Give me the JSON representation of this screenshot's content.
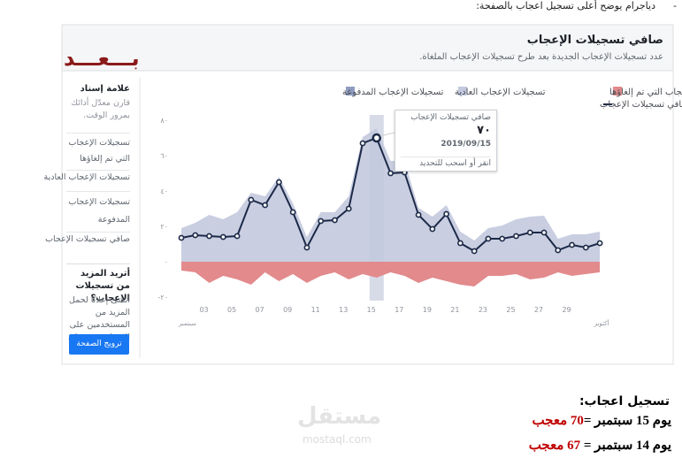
{
  "bullet": "-",
  "intro": "دياجرام يوضح أعلى تسجيل اعجاب بالصفحة:",
  "stamp": "بـــعـــد",
  "sidebar": {
    "heading": "علامة إسناد",
    "desc": "قارن معدّل أدائك بمرور الوقت.",
    "items": [
      "تسجيلات الإعجاب التي تم إلغاؤها",
      "تسجيلات الإعجاب العادية",
      "تسجيلات الإعجاب المدفوعة",
      "صافي تسجيلات الإعجاب"
    ],
    "promo_title": "أتريد المزيد من تسجيلات الإعجاب؟",
    "promo_text": "أنشئ إعلانًا لحمل المزيد من المستخدمين على الإعجاب بصفحتك.",
    "button": "ترويج الصفحة"
  },
  "chart_data": {
    "type": "line",
    "title": "صافي تسجيلات الإعجاب",
    "subtitle": "عدد تسجيلات الإعجاب الجديدة بعد طرح تسجيلات الإعجاب الملغاة.",
    "categories": [
      null,
      null,
      "03",
      null,
      "05",
      null,
      "07",
      null,
      "09",
      null,
      "11",
      null,
      "13",
      null,
      "15",
      null,
      "17",
      null,
      "19",
      null,
      "21",
      null,
      "23",
      null,
      "25",
      null,
      "27",
      null,
      "29",
      null,
      null
    ],
    "month_labels": [
      "سبتمبر",
      "أكتوبر"
    ],
    "series": [
      {
        "name": "تسجيلات الإعجاب التي تم إلغاؤها",
        "color": "#e28a8c",
        "style": "area",
        "values": [
          -5,
          -6,
          -12,
          -8,
          -10,
          -13,
          -6,
          -11,
          -7,
          -12,
          -8,
          -6,
          -10,
          -7,
          -9,
          -6,
          -8,
          -12,
          -9,
          -11,
          -13,
          -14,
          -8,
          -8,
          -7,
          -10,
          -9,
          -6,
          -8,
          -7,
          -6
        ]
      },
      {
        "name": "تسجيلات الإعجاب العادية",
        "color": "#c3c9de",
        "style": "area",
        "values": [
          19,
          22,
          26.5,
          24,
          28,
          39,
          37,
          48,
          33,
          14,
          28,
          28,
          37,
          70.5,
          75.5,
          57,
          57,
          30.5,
          25.5,
          32,
          17,
          12,
          19,
          20.5,
          24,
          25.5,
          26,
          13,
          15.5,
          15.5,
          17
        ]
      },
      {
        "name": "تسجيلات الإعجاب المدفوعة",
        "color": "#8f9cc2",
        "style": "area",
        "values": [
          0,
          0,
          0,
          0,
          0,
          0,
          0,
          0,
          0,
          0,
          0,
          0,
          0,
          0,
          0,
          0,
          0,
          0,
          0,
          0,
          0,
          0,
          0,
          0,
          0,
          0,
          0,
          0,
          0,
          0,
          0
        ]
      },
      {
        "name": "صافي تسجيلات الإعجاب",
        "color": "#1c2a48",
        "style": "line",
        "values": [
          13.5,
          15,
          14.5,
          14,
          14.5,
          35,
          32,
          45,
          28,
          8,
          23,
          23.5,
          30,
          67,
          70,
          50,
          50.5,
          26.5,
          18.5,
          27,
          10.5,
          6,
          13,
          13,
          14.5,
          16.5,
          16.5,
          6.5,
          9.5,
          8,
          10.5
        ]
      }
    ],
    "ylim": [
      -22,
      83
    ],
    "yticks": [
      {
        "value": 80,
        "label": "٨٠"
      },
      {
        "value": 60,
        "label": "٦٠"
      },
      {
        "value": 40,
        "label": "٤٠"
      },
      {
        "value": 20,
        "label": "٢٠"
      },
      {
        "value": 0,
        "label": "٠"
      },
      {
        "value": -20,
        "label": "-٢٠"
      }
    ],
    "grid": false,
    "tooltip": {
      "title": "صافي تسجيلات الإعجاب",
      "value_label": "٧٠",
      "date": "2019/09/15",
      "hint": "انقر أو اسحب للتحديد"
    }
  },
  "notes": {
    "heading": "تسجيل اعجاب:",
    "lines": [
      {
        "text": "يوم 15 سبتمبر =",
        "value_label": "70 معجب"
      },
      {
        "text": "يوم 14 سبتمبر =",
        "value_label": "67 معجب"
      }
    ]
  },
  "watermark": {
    "ar": "مستقل",
    "en": "mostaql.com"
  }
}
